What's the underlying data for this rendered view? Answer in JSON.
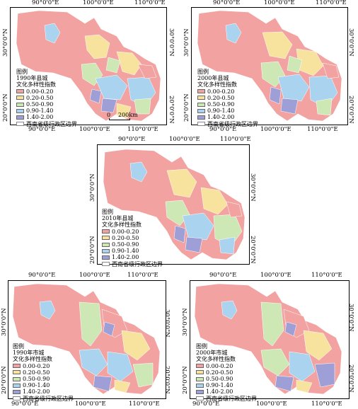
{
  "axes": {
    "lon": [
      "90°0'0\"E",
      "100°0'0\"E",
      "110°0'0\"E"
    ],
    "lat_top": "30°0'0\"N",
    "lat_bottom": "20°0'0\"N"
  },
  "legend_title": "图例",
  "legend_items": [
    {
      "label": "0.00-0.20",
      "color": "#f2a3a1"
    },
    {
      "label": "0.20-0.50",
      "color": "#f7e39d"
    },
    {
      "label": "0.50-0.90",
      "color": "#cde8b4"
    },
    {
      "label": "0.90-1.40",
      "color": "#a9d3ee"
    },
    {
      "label": "1.40-2.00",
      "color": "#9f9fd8"
    }
  ],
  "border_label": "西南省级行政区边界",
  "scale": {
    "zero": "0",
    "label": "200km"
  },
  "panels": [
    {
      "id": "p1990c",
      "title": "1990年县城",
      "subtitle": "文化多样性指数"
    },
    {
      "id": "p2000c",
      "title": "2000年县城",
      "subtitle": "文化多样性指数"
    },
    {
      "id": "p2010c",
      "title": "2010年县城",
      "subtitle": "文化多样性指数"
    },
    {
      "id": "p1990s",
      "title": "1990年市城",
      "subtitle": "文化多样性指数"
    },
    {
      "id": "p2000s",
      "title": "2000年市城",
      "subtitle": "文化多样性指数"
    }
  ]
}
